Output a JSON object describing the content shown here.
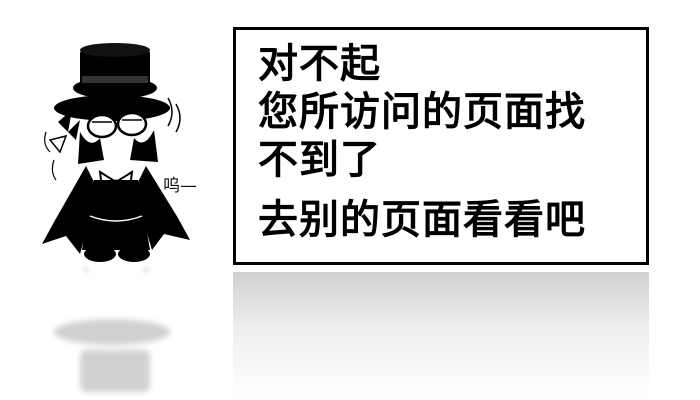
{
  "error_page": {
    "message_lines": [
      "对不起",
      "您所访问的页面找",
      "不到了",
      "去别的页面看看吧"
    ],
    "character": {
      "sob_text": "呜—",
      "icon": "top-hat-chibi-character"
    }
  },
  "colors": {
    "background": "#ffffff",
    "text": "#000000",
    "border": "#000000",
    "reflection": "#dcdcdc"
  }
}
